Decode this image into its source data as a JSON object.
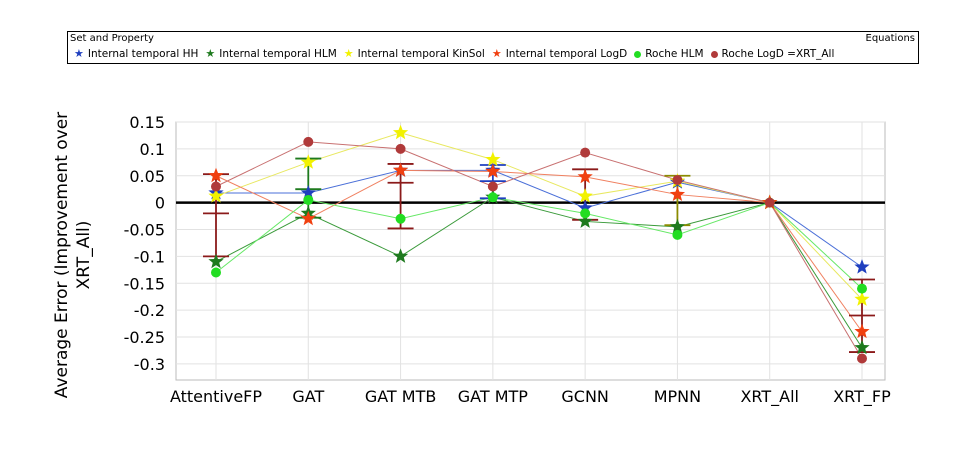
{
  "legend": {
    "left_heading": "Set and Property",
    "right_heading": "Equations",
    "items": [
      {
        "label": "Internal temporal HH",
        "marker": "star",
        "color": "#1f3fbf"
      },
      {
        "label": "Internal temporal HLM",
        "marker": "star",
        "color": "#1e7a1e"
      },
      {
        "label": "Internal temporal KinSol",
        "marker": "star",
        "color": "#f2f200"
      },
      {
        "label": "Internal temporal LogD",
        "marker": "star",
        "color": "#f04010"
      },
      {
        "label": "Roche HLM",
        "marker": "circle",
        "color": "#22dd22"
      },
      {
        "label": "Roche LogD =XRT_All",
        "marker": "circle",
        "color": "#b03a3a"
      }
    ]
  },
  "chart_data": {
    "type": "line",
    "title": "",
    "xlabel": "",
    "ylabel_lines": [
      "Average Error (Improvement over",
      "XRT_All)"
    ],
    "categories": [
      "AttentiveFP",
      "GAT",
      "GAT MTB",
      "GAT MTP",
      "GCNN",
      "MPNN",
      "XRT_All",
      "XRT_FP"
    ],
    "ylim": [
      -0.33,
      0.15
    ],
    "yticks": [
      0.15,
      0.1,
      0.05,
      0,
      -0.05,
      -0.1,
      -0.15,
      -0.2,
      -0.25,
      -0.3
    ],
    "ytick_labels": [
      "0.15",
      "0.1",
      "0.05",
      "0",
      "-0.05",
      "-0.1",
      "-0.15",
      "-0.2",
      "-0.25",
      "-0.3"
    ],
    "series": [
      {
        "name": "Internal temporal HH",
        "marker": "star",
        "color": "#1f3fbf",
        "line_color": "#4a6fd8",
        "values": [
          0.018,
          0.018,
          0.06,
          0.06,
          -0.01,
          0.038,
          0.0,
          -0.12
        ]
      },
      {
        "name": "Internal temporal HLM",
        "marker": "star",
        "color": "#1e7a1e",
        "line_color": "#3a9a3a",
        "values": [
          -0.11,
          -0.02,
          -0.1,
          0.01,
          -0.035,
          -0.045,
          0.0,
          -0.27
        ]
      },
      {
        "name": "Internal temporal KinSol",
        "marker": "star",
        "color": "#f2f200",
        "line_color": "#e8e860",
        "values": [
          0.012,
          0.075,
          0.13,
          0.08,
          0.012,
          0.04,
          0.0,
          -0.18
        ]
      },
      {
        "name": "Internal temporal LogD",
        "marker": "star",
        "color": "#f04010",
        "line_color": "#f08060",
        "values": [
          0.05,
          -0.03,
          0.06,
          0.058,
          0.048,
          0.015,
          0.0,
          -0.24
        ]
      },
      {
        "name": "Roche HLM",
        "marker": "circle",
        "color": "#22dd22",
        "line_color": "#66e866",
        "values": [
          -0.13,
          0.005,
          -0.03,
          0.01,
          -0.02,
          -0.06,
          0.0,
          -0.16
        ]
      },
      {
        "name": "Roche LogD =XRT_All",
        "marker": "circle",
        "color": "#b03a3a",
        "line_color": "#c87070",
        "values": [
          0.03,
          0.113,
          0.1,
          0.03,
          0.093,
          0.042,
          0.0,
          -0.29
        ]
      }
    ],
    "error_bars": [
      {
        "category": "AttentiveFP",
        "low": -0.1,
        "high": 0.053,
        "mid": -0.02,
        "color": "#8b1a1a"
      },
      {
        "category": "GAT",
        "low": -0.028,
        "high": 0.082,
        "mid": 0.025,
        "color": "#1e7a1e"
      },
      {
        "category": "GAT MTB",
        "low": -0.048,
        "high": 0.072,
        "mid": 0.037,
        "color": "#8b1a1a"
      },
      {
        "category": "GAT MTP",
        "low": 0.008,
        "high": 0.07,
        "mid": 0.04,
        "color": "#1f3fbf"
      },
      {
        "category": "GCNN",
        "low": -0.032,
        "high": 0.062,
        "mid": null,
        "color": "#8b1a1a"
      },
      {
        "category": "MPNN",
        "low": -0.042,
        "high": 0.05,
        "mid": null,
        "color": "#8b8b00"
      },
      {
        "category": "XRT_FP",
        "low": -0.278,
        "high": -0.143,
        "mid": -0.21,
        "color": "#8b1a1a"
      }
    ],
    "grid": true,
    "zero_line": true
  }
}
